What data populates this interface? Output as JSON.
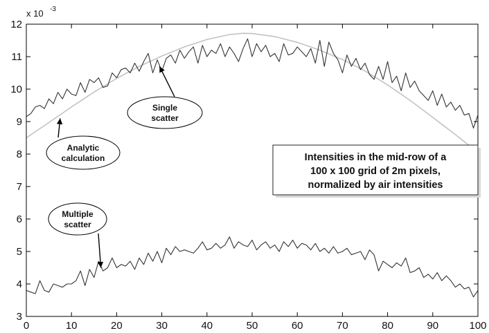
{
  "chart_data": {
    "type": "line",
    "title": "",
    "xlabel": "",
    "ylabel": "",
    "y_scale_label": "x 10",
    "y_scale_exponent": "-3",
    "xlim": [
      0,
      100
    ],
    "ylim": [
      3,
      12
    ],
    "x_ticks": [
      0,
      10,
      20,
      30,
      40,
      50,
      60,
      70,
      80,
      90,
      100
    ],
    "y_ticks": [
      3,
      4,
      5,
      6,
      7,
      8,
      9,
      10,
      11,
      12
    ],
    "grid": false,
    "colors": {
      "single": "#333333",
      "multiple": "#333333",
      "analytic": "#c2c2c2"
    },
    "series": [
      {
        "key": "single",
        "x": [
          0,
          1,
          2,
          3,
          4,
          5,
          6,
          7,
          8,
          9,
          10,
          11,
          12,
          13,
          14,
          15,
          16,
          17,
          18,
          19,
          20,
          21,
          22,
          23,
          24,
          25,
          26,
          27,
          28,
          29,
          30,
          31,
          32,
          33,
          34,
          35,
          36,
          37,
          38,
          39,
          40,
          41,
          42,
          43,
          44,
          45,
          46,
          47,
          48,
          49,
          50,
          51,
          52,
          53,
          54,
          55,
          56,
          57,
          58,
          59,
          60,
          61,
          62,
          63,
          64,
          65,
          66,
          67,
          68,
          69,
          70,
          71,
          72,
          73,
          74,
          75,
          76,
          77,
          78,
          79,
          80,
          81,
          82,
          83,
          84,
          85,
          86,
          87,
          88,
          89,
          90,
          91,
          92,
          93,
          94,
          95,
          96,
          97,
          98,
          99,
          100
        ],
        "values": [
          9.15,
          9.25,
          9.45,
          9.5,
          9.4,
          9.7,
          9.55,
          9.9,
          9.7,
          10.0,
          9.85,
          9.8,
          10.2,
          9.9,
          10.3,
          10.2,
          10.35,
          10.05,
          10.1,
          10.5,
          10.35,
          10.6,
          10.65,
          10.5,
          10.8,
          10.55,
          10.85,
          11.1,
          10.5,
          10.9,
          10.55,
          10.95,
          11.05,
          10.8,
          11.2,
          10.95,
          11.15,
          11.3,
          10.8,
          11.35,
          11.0,
          11.2,
          11.1,
          11.4,
          11.0,
          11.3,
          11.1,
          10.85,
          11.25,
          11.55,
          11.0,
          11.4,
          11.15,
          11.35,
          11.0,
          11.1,
          10.85,
          11.4,
          11.05,
          11.1,
          11.3,
          11.15,
          11.0,
          11.25,
          10.8,
          11.5,
          10.7,
          11.45,
          11.1,
          10.9,
          10.5,
          11.05,
          10.7,
          10.95,
          10.6,
          10.8,
          10.45,
          10.3,
          10.7,
          10.3,
          10.85,
          10.2,
          10.4,
          9.95,
          10.5,
          10.05,
          10.25,
          9.95,
          9.8,
          9.65,
          9.95,
          9.5,
          9.85,
          9.45,
          9.6,
          9.35,
          9.5,
          9.2,
          9.25,
          8.8,
          9.2
        ]
      },
      {
        "key": "multiple",
        "x": [
          0,
          1,
          2,
          3,
          4,
          5,
          6,
          7,
          8,
          9,
          10,
          11,
          12,
          13,
          14,
          15,
          16,
          17,
          18,
          19,
          20,
          21,
          22,
          23,
          24,
          25,
          26,
          27,
          28,
          29,
          30,
          31,
          32,
          33,
          34,
          35,
          36,
          37,
          38,
          39,
          40,
          41,
          42,
          43,
          44,
          45,
          46,
          47,
          48,
          49,
          50,
          51,
          52,
          53,
          54,
          55,
          56,
          57,
          58,
          59,
          60,
          61,
          62,
          63,
          64,
          65,
          66,
          67,
          68,
          69,
          70,
          71,
          72,
          73,
          74,
          75,
          76,
          77,
          78,
          79,
          80,
          81,
          82,
          83,
          84,
          85,
          86,
          87,
          88,
          89,
          90,
          91,
          92,
          93,
          94,
          95,
          96,
          97,
          98,
          99,
          100
        ],
        "values": [
          3.8,
          3.75,
          3.7,
          4.1,
          3.8,
          3.75,
          4.0,
          3.95,
          3.9,
          4.0,
          4.0,
          4.1,
          4.4,
          3.95,
          4.45,
          4.2,
          4.7,
          4.4,
          4.5,
          4.8,
          4.5,
          4.6,
          4.55,
          4.7,
          4.45,
          4.8,
          4.6,
          4.95,
          4.7,
          5.0,
          4.65,
          5.1,
          4.9,
          5.15,
          5.0,
          5.05,
          5.0,
          4.95,
          5.1,
          5.3,
          5.05,
          5.1,
          5.25,
          5.1,
          5.2,
          5.45,
          5.1,
          5.3,
          5.2,
          5.15,
          5.35,
          5.05,
          5.2,
          5.3,
          5.1,
          5.2,
          5.0,
          5.3,
          5.15,
          5.35,
          5.1,
          5.25,
          5.2,
          5.05,
          5.25,
          5.0,
          5.1,
          4.95,
          5.15,
          4.95,
          5.0,
          5.1,
          4.9,
          4.95,
          5.0,
          4.75,
          5.05,
          4.9,
          4.4,
          4.7,
          4.6,
          4.5,
          4.65,
          4.55,
          4.8,
          4.35,
          4.4,
          4.5,
          4.2,
          4.3,
          4.15,
          4.35,
          4.1,
          4.25,
          4.1,
          3.9,
          4.0,
          3.85,
          3.9,
          3.6,
          3.8
        ]
      },
      {
        "key": "analytic",
        "x": [
          0,
          5,
          10,
          15,
          20,
          25,
          30,
          35,
          40,
          45,
          48,
          50,
          55,
          60,
          65,
          70,
          75,
          80,
          85,
          90,
          95,
          100
        ],
        "values": [
          8.5,
          8.97,
          9.45,
          9.91,
          10.33,
          10.7,
          11.02,
          11.3,
          11.53,
          11.68,
          11.72,
          11.71,
          11.62,
          11.44,
          11.2,
          10.91,
          10.56,
          10.13,
          9.65,
          9.13,
          8.6,
          8.05
        ]
      }
    ],
    "annotations": [
      {
        "id": "single-scatter",
        "lines": [
          "Single",
          "scatter"
        ],
        "target_x": 29.5,
        "target_y": 10.7
      },
      {
        "id": "analytic-calculation",
        "lines": [
          "Analytic",
          "calculation"
        ],
        "target_x": 7.5,
        "target_y": 9.1
      },
      {
        "id": "multiple-scatter",
        "lines": [
          "Multiple",
          "scatter"
        ],
        "target_x": 16.5,
        "target_y": 4.5
      }
    ],
    "text_box": {
      "lines": [
        "Intensities in the mid-row of a",
        "100 x 100 grid of 2m  pixels,",
        "normalized by air intensities"
      ]
    }
  }
}
